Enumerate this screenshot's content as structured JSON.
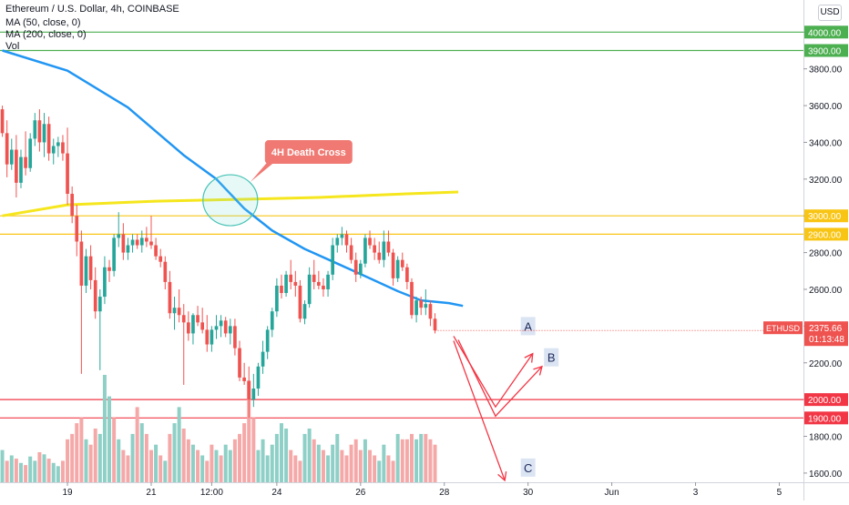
{
  "header": {
    "title": "Ethereum / U.S. Dollar, 4h, COINBASE",
    "ma50_label": "MA (50, close, 0)",
    "ma200_label": "MA (200, close, 0)",
    "vol_label": "Vol"
  },
  "currency_button": "USD",
  "price_label": {
    "symbol": "ETHUSD",
    "price": "2375.66",
    "countdown": "01:13:48",
    "color": "#ef5350"
  },
  "annotations": {
    "death_cross": "4H Death Cross",
    "scenario_a": "A",
    "scenario_b": "B",
    "scenario_c": "C"
  },
  "colors": {
    "up": "#26a69a",
    "down": "#ef5350",
    "ma50": "#2196f3",
    "ma200": "#f5e61d",
    "support": "#f23645",
    "resistance_green": "#4caf50",
    "resistance_yellow": "#f9c515",
    "vol_up": "#8ecfc6",
    "vol_down": "#f5a8a8"
  },
  "chart_data": {
    "type": "candlestick",
    "y_axis": {
      "min": 1550,
      "max": 4150,
      "ticks": [
        "1600.00",
        "1800.00",
        "2000.00",
        "2200.00",
        "2400.00",
        "2600.00",
        "2800.00",
        "3000.00",
        "3200.00",
        "3400.00",
        "3600.00",
        "3800.00",
        "4000.00"
      ]
    },
    "x_ticks": [
      {
        "label": "19",
        "index": 14
      },
      {
        "label": "21",
        "index": 32
      },
      {
        "label": "12:00",
        "index": 45
      },
      {
        "label": "24",
        "index": 59
      },
      {
        "label": "26",
        "index": 77
      },
      {
        "label": "28",
        "index": 95
      },
      {
        "label": "30",
        "index": 113
      },
      {
        "label": "Jun",
        "index": 131
      },
      {
        "label": "3",
        "index": 149
      },
      {
        "label": "5",
        "index": 167
      }
    ],
    "x_domain": [
      -0.5,
      172
    ],
    "candles": [
      [
        3580,
        3600,
        3430,
        3450
      ],
      [
        3450,
        3520,
        3210,
        3280
      ],
      [
        3280,
        3420,
        3250,
        3360
      ],
      [
        3360,
        3440,
        3100,
        3180
      ],
      [
        3180,
        3360,
        3150,
        3320
      ],
      [
        3320,
        3460,
        3220,
        3260
      ],
      [
        3260,
        3450,
        3240,
        3420
      ],
      [
        3420,
        3560,
        3380,
        3520
      ],
      [
        3520,
        3580,
        3350,
        3400
      ],
      [
        3400,
        3560,
        3320,
        3500
      ],
      [
        3500,
        3540,
        3300,
        3340
      ],
      [
        3340,
        3420,
        3280,
        3380
      ],
      [
        3380,
        3430,
        3320,
        3400
      ],
      [
        3400,
        3440,
        3300,
        3340
      ],
      [
        3340,
        3480,
        3060,
        3120
      ],
      [
        3120,
        3160,
        2960,
        3000
      ],
      [
        3000,
        3060,
        2780,
        2860
      ],
      [
        2860,
        2920,
        2140,
        2620
      ],
      [
        2620,
        2820,
        2580,
        2780
      ],
      [
        2780,
        2840,
        2600,
        2650
      ],
      [
        2650,
        2720,
        2440,
        2480
      ],
      [
        2480,
        2600,
        2160,
        2560
      ],
      [
        2560,
        2780,
        2520,
        2720
      ],
      [
        2720,
        2760,
        2640,
        2700
      ],
      [
        2700,
        2900,
        2670,
        2880
      ],
      [
        2880,
        3020,
        2830,
        2900
      ],
      [
        2900,
        2960,
        2760,
        2800
      ],
      [
        2800,
        2880,
        2760,
        2840
      ],
      [
        2840,
        2900,
        2800,
        2870
      ],
      [
        2870,
        2900,
        2820,
        2840
      ],
      [
        2840,
        2920,
        2800,
        2880
      ],
      [
        2880,
        2940,
        2830,
        2860
      ],
      [
        2860,
        3000,
        2820,
        2840
      ],
      [
        2840,
        2880,
        2760,
        2780
      ],
      [
        2780,
        2820,
        2720,
        2750
      ],
      [
        2750,
        2780,
        2600,
        2640
      ],
      [
        2640,
        2700,
        2440,
        2470
      ],
      [
        2470,
        2560,
        2380,
        2500
      ],
      [
        2500,
        2600,
        2420,
        2460
      ],
      [
        2460,
        2520,
        2080,
        2420
      ],
      [
        2420,
        2480,
        2320,
        2360
      ],
      [
        2360,
        2470,
        2300,
        2460
      ],
      [
        2460,
        2510,
        2400,
        2420
      ],
      [
        2420,
        2500,
        2360,
        2380
      ],
      [
        2380,
        2460,
        2260,
        2300
      ],
      [
        2300,
        2400,
        2260,
        2380
      ],
      [
        2380,
        2460,
        2330,
        2400
      ],
      [
        2400,
        2460,
        2340,
        2430
      ],
      [
        2430,
        2450,
        2340,
        2360
      ],
      [
        2360,
        2440,
        2300,
        2400
      ],
      [
        2400,
        2440,
        2240,
        2280
      ],
      [
        2280,
        2320,
        2100,
        2120
      ],
      [
        2120,
        2200,
        2080,
        2100
      ],
      [
        2100,
        2180,
        1900,
        2000
      ],
      [
        2000,
        2140,
        1960,
        2060
      ],
      [
        2060,
        2200,
        2020,
        2180
      ],
      [
        2180,
        2320,
        2140,
        2260
      ],
      [
        2260,
        2400,
        2220,
        2380
      ],
      [
        2380,
        2500,
        2340,
        2480
      ],
      [
        2480,
        2660,
        2450,
        2620
      ],
      [
        2620,
        2680,
        2550,
        2580
      ],
      [
        2580,
        2700,
        2560,
        2680
      ],
      [
        2680,
        2760,
        2600,
        2640
      ],
      [
        2640,
        2700,
        2560,
        2620
      ],
      [
        2620,
        2650,
        2420,
        2440
      ],
      [
        2440,
        2540,
        2410,
        2520
      ],
      [
        2520,
        2720,
        2500,
        2680
      ],
      [
        2680,
        2760,
        2600,
        2640
      ],
      [
        2640,
        2700,
        2600,
        2620
      ],
      [
        2620,
        2660,
        2560,
        2600
      ],
      [
        2600,
        2700,
        2560,
        2680
      ],
      [
        2680,
        2880,
        2650,
        2840
      ],
      [
        2840,
        2900,
        2800,
        2880
      ],
      [
        2880,
        2940,
        2840,
        2900
      ],
      [
        2900,
        2920,
        2800,
        2840
      ],
      [
        2840,
        2880,
        2740,
        2760
      ],
      [
        2760,
        2800,
        2640,
        2680
      ],
      [
        2680,
        2760,
        2660,
        2740
      ],
      [
        2740,
        2900,
        2720,
        2880
      ],
      [
        2880,
        2920,
        2820,
        2840
      ],
      [
        2840,
        2880,
        2760,
        2800
      ],
      [
        2800,
        2860,
        2740,
        2760
      ],
      [
        2760,
        2920,
        2720,
        2860
      ],
      [
        2860,
        2920,
        2780,
        2800
      ],
      [
        2800,
        2820,
        2620,
        2660
      ],
      [
        2660,
        2780,
        2640,
        2760
      ],
      [
        2760,
        2800,
        2700,
        2720
      ],
      [
        2720,
        2740,
        2600,
        2640
      ],
      [
        2640,
        2660,
        2440,
        2460
      ],
      [
        2460,
        2560,
        2420,
        2540
      ],
      [
        2540,
        2560,
        2460,
        2500
      ],
      [
        2500,
        2600,
        2460,
        2520
      ],
      [
        2520,
        2540,
        2400,
        2440
      ],
      [
        2440,
        2470,
        2360,
        2376
      ]
    ],
    "volume_max": 100,
    "volumes": [
      [
        30,
        1
      ],
      [
        20,
        0
      ],
      [
        25,
        1
      ],
      [
        22,
        0
      ],
      [
        18,
        1
      ],
      [
        16,
        0
      ],
      [
        24,
        1
      ],
      [
        20,
        1
      ],
      [
        28,
        0
      ],
      [
        26,
        1
      ],
      [
        22,
        0
      ],
      [
        18,
        1
      ],
      [
        15,
        1
      ],
      [
        20,
        0
      ],
      [
        40,
        0
      ],
      [
        45,
        0
      ],
      [
        55,
        0
      ],
      [
        60,
        0
      ],
      [
        40,
        1
      ],
      [
        35,
        0
      ],
      [
        50,
        0
      ],
      [
        45,
        1
      ],
      [
        100,
        1
      ],
      [
        80,
        1
      ],
      [
        60,
        0
      ],
      [
        40,
        1
      ],
      [
        30,
        0
      ],
      [
        25,
        0
      ],
      [
        45,
        1
      ],
      [
        70,
        0
      ],
      [
        55,
        1
      ],
      [
        45,
        0
      ],
      [
        30,
        0
      ],
      [
        35,
        1
      ],
      [
        25,
        0
      ],
      [
        20,
        1
      ],
      [
        45,
        0
      ],
      [
        55,
        1
      ],
      [
        70,
        1
      ],
      [
        50,
        0
      ],
      [
        40,
        0
      ],
      [
        35,
        1
      ],
      [
        30,
        0
      ],
      [
        25,
        1
      ],
      [
        20,
        0
      ],
      [
        35,
        0
      ],
      [
        30,
        1
      ],
      [
        25,
        0
      ],
      [
        35,
        1
      ],
      [
        30,
        1
      ],
      [
        40,
        0
      ],
      [
        45,
        0
      ],
      [
        55,
        0
      ],
      [
        95,
        0
      ],
      [
        60,
        0
      ],
      [
        30,
        1
      ],
      [
        40,
        1
      ],
      [
        25,
        1
      ],
      [
        35,
        1
      ],
      [
        45,
        1
      ],
      [
        55,
        1
      ],
      [
        50,
        1
      ],
      [
        30,
        0
      ],
      [
        25,
        0
      ],
      [
        20,
        0
      ],
      [
        45,
        1
      ],
      [
        50,
        1
      ],
      [
        40,
        0
      ],
      [
        35,
        1
      ],
      [
        30,
        0
      ],
      [
        25,
        1
      ],
      [
        35,
        1
      ],
      [
        45,
        1
      ],
      [
        30,
        0
      ],
      [
        25,
        0
      ],
      [
        35,
        0
      ],
      [
        40,
        0
      ],
      [
        30,
        0
      ],
      [
        40,
        1
      ],
      [
        30,
        0
      ],
      [
        25,
        0
      ],
      [
        20,
        1
      ],
      [
        35,
        1
      ],
      [
        25,
        0
      ],
      [
        20,
        0
      ],
      [
        45,
        1
      ],
      [
        40,
        0
      ],
      [
        40,
        0
      ],
      [
        45,
        0
      ],
      [
        40,
        1
      ],
      [
        45,
        1
      ],
      [
        45,
        0
      ],
      [
        40,
        0
      ],
      [
        35,
        0
      ]
    ],
    "ma50": [
      [
        0,
        3900
      ],
      [
        14,
        3790
      ],
      [
        27,
        3590
      ],
      [
        39,
        3330
      ],
      [
        46,
        3200
      ],
      [
        52,
        3040
      ],
      [
        58,
        2920
      ],
      [
        65,
        2820
      ],
      [
        72,
        2740
      ],
      [
        79,
        2660
      ],
      [
        85,
        2590
      ],
      [
        90,
        2540
      ],
      [
        96,
        2525
      ],
      [
        99,
        2510
      ]
    ],
    "ma200": [
      [
        0,
        3000
      ],
      [
        14,
        3060
      ],
      [
        33,
        3080
      ],
      [
        52,
        3090
      ],
      [
        68,
        3100
      ],
      [
        87,
        3120
      ],
      [
        98,
        3130
      ]
    ],
    "horizontal_levels": [
      {
        "price": 4000,
        "label": "4000.00",
        "color": "#4caf50"
      },
      {
        "price": 3900,
        "label": "3900.00",
        "color": "#4caf50"
      },
      {
        "price": 3000,
        "label": "3000.00",
        "color": "#f9c515"
      },
      {
        "price": 2900,
        "label": "2900.00",
        "color": "#f9c515"
      },
      {
        "price": 2000,
        "label": "2000.00",
        "color": "#f23645"
      },
      {
        "price": 1900,
        "label": "1900.00",
        "color": "#f23645"
      }
    ],
    "death_cross_point": [
      49,
      3085
    ],
    "scenario_paths": [
      {
        "name": "A",
        "points": [
          [
            97,
            2345
          ],
          [
            106,
            1960
          ],
          [
            114,
            2250
          ]
        ],
        "label_at": [
          113,
          2400
        ]
      },
      {
        "name": "B",
        "points": [
          [
            98,
            2325
          ],
          [
            106,
            1910
          ],
          [
            116,
            2180
          ]
        ],
        "label_at": [
          118,
          2230
        ]
      },
      {
        "name": "C",
        "points": [
          [
            97,
            2320
          ],
          [
            108,
            1560
          ]
        ],
        "label_at": [
          113,
          1630
        ]
      }
    ]
  }
}
